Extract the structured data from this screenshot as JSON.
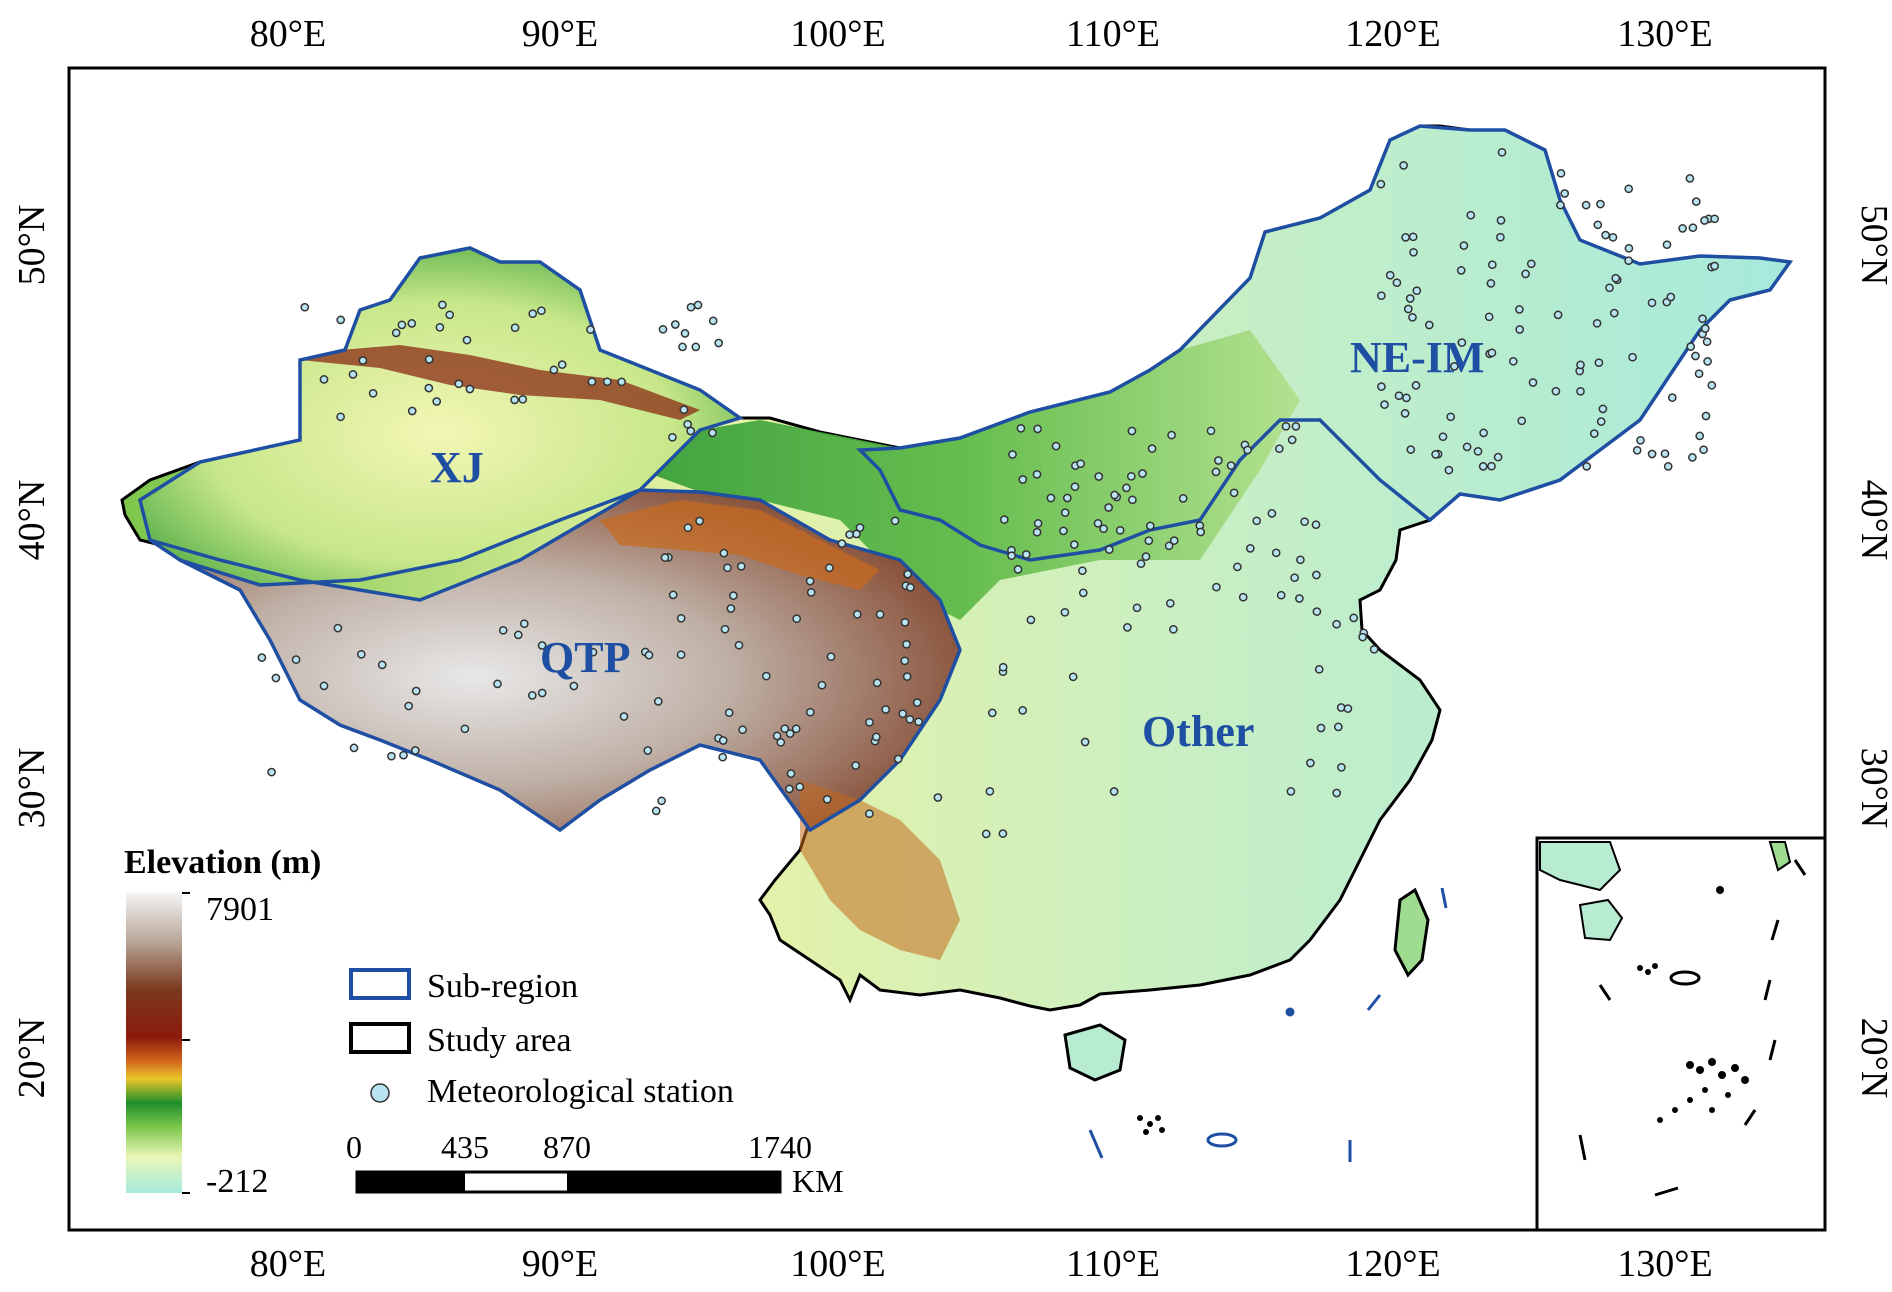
{
  "map": {
    "longitude_ticks": [
      "80°E",
      "90°E",
      "100°E",
      "110°E",
      "120°E",
      "130°E"
    ],
    "latitude_ticks": [
      "50°N",
      "40°N",
      "30°N",
      "20°N"
    ],
    "regions": [
      "XJ",
      "NE-IM",
      "QTP",
      "Other"
    ]
  },
  "legend": {
    "title": "Elevation (m)",
    "max_value": "7901",
    "min_value": "-212",
    "items": [
      "Sub-region",
      "Study area",
      "Meteorological station"
    ],
    "colors": {
      "subregion": "#1f4fa3",
      "study_area": "#000000",
      "station": "#b8e4f2"
    }
  },
  "scale_bar": {
    "ticks": [
      "0",
      "435",
      "870",
      "1740"
    ],
    "unit": "KM"
  }
}
